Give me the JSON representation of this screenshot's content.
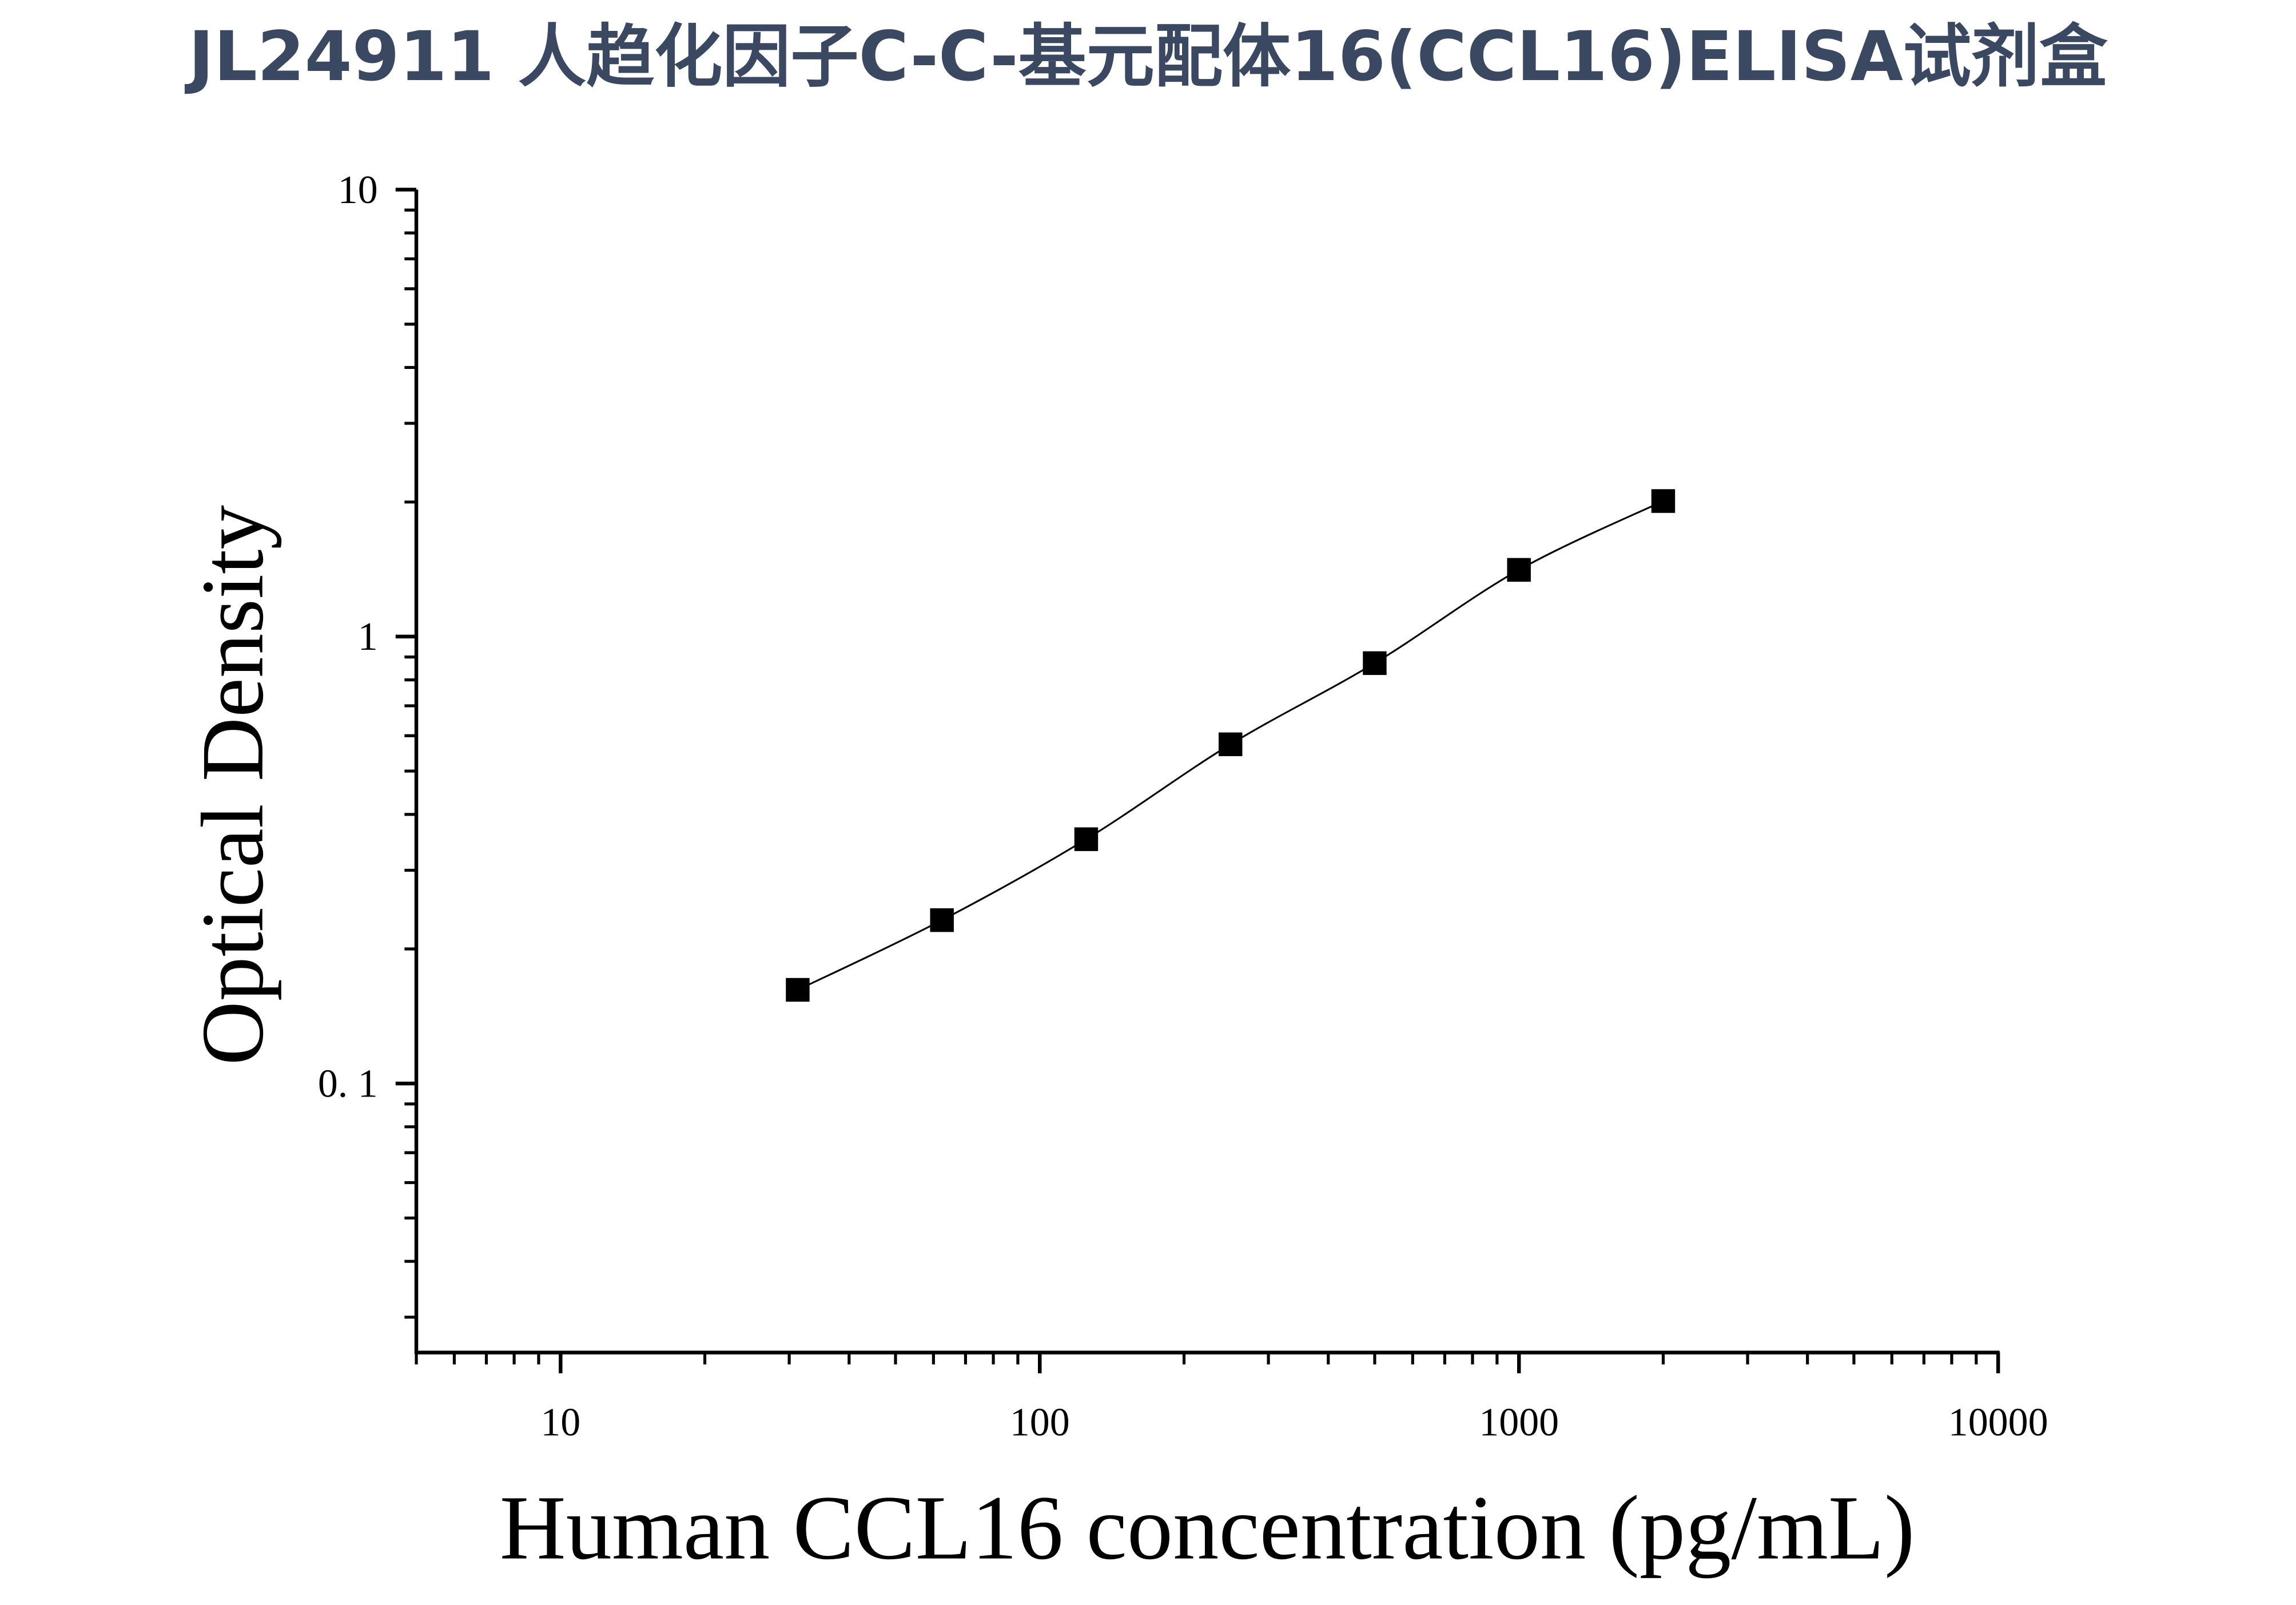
{
  "chart_data": {
    "type": "line",
    "title": "JL24911 人趋化因子C-C-基元配体16(CCL16)ELISA试剂盒",
    "x_label": "Human CCL16 concentration (pg/mL)",
    "y_label": "Optical Density",
    "x": [
      31.25,
      62.5,
      125,
      250,
      500,
      1000,
      2000
    ],
    "series": [
      {
        "name": "CCL16",
        "color": "#000000",
        "marker": "square",
        "values": [
          0.162,
          0.232,
          0.352,
          0.574,
          0.872,
          1.41,
          2.01
        ]
      }
    ],
    "xlim": [
      5,
      10000
    ],
    "xticks": [
      10,
      100,
      1000,
      10000
    ],
    "ylim": [
      0.025,
      10
    ],
    "yticks": [
      {
        "value": 0.1,
        "label": "0. 1"
      },
      1,
      10
    ],
    "x_log": true,
    "y_log": true,
    "show_legend": false
  }
}
